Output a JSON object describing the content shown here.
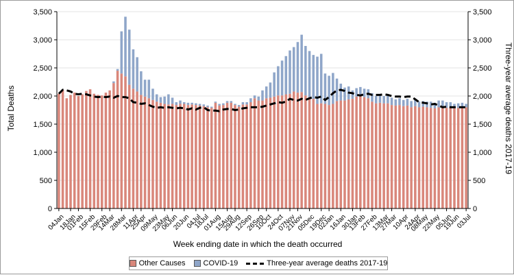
{
  "chart_data": {
    "type": "bar",
    "xlabel": "Week ending date in which the death occurred",
    "ylabel": "Total Deaths",
    "y2label": "Three-year average deaths 2017-19",
    "ylim": [
      0,
      3500
    ],
    "yticks": [
      "0",
      "500",
      "1,000",
      "1,500",
      "2,000",
      "2,500",
      "3,000",
      "3,500"
    ],
    "stacked": true,
    "grid": true,
    "legend_position": "bottom",
    "x_tick_labels": [
      "04Jan",
      "18Jan",
      "01Feb",
      "15Feb",
      "29Feb",
      "14Mar",
      "28Mar",
      "11Apr",
      "25Apr",
      "09May",
      "23May",
      "06Jun",
      "20Jun",
      "04Jul",
      "18Jul",
      "01Aug",
      "15Aug",
      "29Aug",
      "12Sep",
      "26Sep",
      "10Oct",
      "24Oct",
      "07Nov",
      "21Nov",
      "05Dec",
      "19Dec",
      "02Jan",
      "16Jan",
      "30Jan",
      "13Feb",
      "27Feb",
      "13Mar",
      "27Mar",
      "10Apr",
      "24Apr",
      "08May",
      "22May",
      "05Jun",
      "19Jun",
      "03Jul"
    ],
    "series": [
      {
        "name": "Other Causes",
        "color": "#d9877b",
        "values": [
          2040,
          2110,
          1960,
          2020,
          2060,
          2000,
          2030,
          2090,
          2120,
          2040,
          2020,
          2010,
          2060,
          2100,
          2230,
          2450,
          2400,
          2350,
          2200,
          2130,
          2080,
          2020,
          1990,
          1960,
          1930,
          1900,
          1880,
          1860,
          1850,
          1860,
          1840,
          1860,
          1860,
          1840,
          1850,
          1840,
          1830,
          1820,
          1800,
          1790,
          1880,
          1830,
          1840,
          1880,
          1880,
          1840,
          1810,
          1850,
          1850,
          1890,
          1960,
          1920,
          1920,
          1960,
          1970,
          1990,
          2010,
          2010,
          2030,
          2040,
          2080,
          2060,
          2070,
          2010,
          1980,
          1950,
          1860,
          1870,
          1860,
          1840,
          1860,
          1910,
          1920,
          1920,
          1940,
          1950,
          1990,
          2000,
          1980,
          1960,
          1900,
          1870,
          1880,
          1870,
          1870,
          1840,
          1830,
          1840,
          1820,
          1830,
          1800,
          1820,
          1800,
          1810,
          1800,
          1790,
          1780,
          1800,
          1810,
          1790,
          1800,
          1780,
          1790,
          1810,
          1800
        ]
      },
      {
        "name": "COVID-19",
        "color": "#8fa6c9",
        "values": [
          0,
          0,
          0,
          0,
          0,
          0,
          0,
          0,
          0,
          0,
          0,
          0,
          0,
          0,
          30,
          30,
          750,
          1060,
          980,
          700,
          610,
          420,
          300,
          330,
          200,
          130,
          100,
          130,
          180,
          110,
          50,
          60,
          30,
          40,
          30,
          30,
          30,
          30,
          30,
          20,
          20,
          30,
          30,
          30,
          30,
          20,
          30,
          40,
          40,
          70,
          50,
          70,
          180,
          210,
          270,
          430,
          520,
          620,
          680,
          770,
          790,
          900,
          1020,
          880,
          820,
          780,
          840,
          880,
          540,
          520,
          550,
          400,
          300,
          230,
          230,
          150,
          150,
          160,
          150,
          160,
          150,
          130,
          130,
          130,
          130,
          130,
          110,
          120,
          110,
          120,
          110,
          110,
          100,
          100,
          100,
          110,
          100,
          120,
          110,
          100,
          90,
          80,
          80,
          70,
          60
        ]
      }
    ],
    "avg_line": {
      "name": "Three-year average deaths 2017-19",
      "values": [
        2040,
        2110,
        2100,
        2080,
        2040,
        2030,
        2040,
        2030,
        2010,
        1990,
        1980,
        1990,
        1980,
        1990,
        1970,
        2000,
        1980,
        1980,
        1960,
        1890,
        1880,
        1860,
        1870,
        1840,
        1810,
        1790,
        1800,
        1790,
        1800,
        1790,
        1780,
        1790,
        1780,
        1760,
        1780,
        1760,
        1790,
        1800,
        1750,
        1740,
        1740,
        1730,
        1760,
        1770,
        1770,
        1750,
        1760,
        1780,
        1790,
        1800,
        1800,
        1800,
        1810,
        1830,
        1850,
        1870,
        1890,
        1880,
        1900,
        1950,
        1930,
        1920,
        1950,
        1930,
        1960,
        1980,
        1970,
        1990,
        1930,
        1980,
        2050,
        2100,
        2110,
        2090,
        2060,
        2050,
        2020,
        2010,
        2030,
        2040,
        2020,
        2020,
        2020,
        2030,
        2020,
        2000,
        1990,
        1990,
        1980,
        1990,
        1990,
        1940,
        1890,
        1880,
        1870,
        1850,
        1860,
        1830,
        1800,
        1810,
        1800,
        1800,
        1800,
        1800,
        1800
      ]
    }
  }
}
